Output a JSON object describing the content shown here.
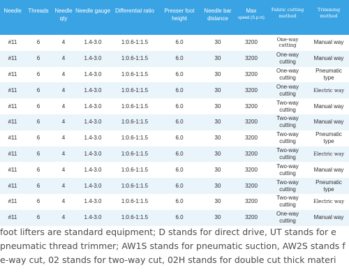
{
  "table": {
    "headers": [
      {
        "text": "Needle",
        "style": "sans"
      },
      {
        "text": "Threads",
        "style": "sans"
      },
      {
        "text": "Needle qty",
        "style": "sans"
      },
      {
        "text": "Needle gauge",
        "style": "sans"
      },
      {
        "text": "Differential ratio",
        "style": "sans"
      },
      {
        "text": "Presser foot height",
        "style": "sans"
      },
      {
        "text": "Needle bar distance",
        "style": "sans"
      },
      {
        "text": "Max",
        "small": "speed (S.p.m)",
        "style": "sans"
      },
      {
        "text": "Fabric cutting method",
        "style": "serif"
      },
      {
        "text": "Trimming method",
        "style": "serif"
      }
    ],
    "rows": [
      {
        "needle": "#11",
        "threads": "6",
        "qty": "4",
        "gauge": "1.4-3.0",
        "ratio": "1:0.6-1:1.5",
        "height": "6.0",
        "bar": "30",
        "speed": "3200",
        "cut": "One-way cutting",
        "cut_serif": true,
        "trim": "Manual way",
        "trim_serif": false
      },
      {
        "needle": "#11",
        "threads": "6",
        "qty": "4",
        "gauge": "1.4-3.0",
        "ratio": "1:0.6-1:1.5",
        "height": "6.0",
        "bar": "30",
        "speed": "3200",
        "cut": "One-way cutting",
        "cut_serif": false,
        "trim": "Manual way",
        "trim_serif": false
      },
      {
        "needle": "#11",
        "threads": "6",
        "qty": "4",
        "gauge": "1.4-3.0",
        "ratio": "1:0.6-1:1.5",
        "height": "6.0",
        "bar": "30",
        "speed": "3200",
        "cut": "One-way cutting",
        "cut_serif": false,
        "trim": "Pneumatic type",
        "trim_serif": false
      },
      {
        "needle": "#11",
        "threads": "6",
        "qty": "4",
        "gauge": "1.4-3.0",
        "ratio": "1:0.6-1:1.5",
        "height": "6.0",
        "bar": "30",
        "speed": "3200",
        "cut": "One-way cutting",
        "cut_serif": false,
        "trim": "Electric way",
        "trim_serif": true
      },
      {
        "needle": "#11",
        "threads": "6",
        "qty": "4",
        "gauge": "1.4-3.0",
        "ratio": "1:0.6-1:1.5",
        "height": "6.0",
        "bar": "30",
        "speed": "3200",
        "cut": "Two-way cutting",
        "cut_serif": false,
        "trim": "Manual way",
        "trim_serif": false
      },
      {
        "needle": "#11",
        "threads": "6",
        "qty": "4",
        "gauge": "1.4-3.0",
        "ratio": "1:0.6-1:1.5",
        "height": "6.0",
        "bar": "30",
        "speed": "3200",
        "cut": "Two-way cutting",
        "cut_serif": false,
        "trim": "Manual way",
        "trim_serif": false
      },
      {
        "needle": "#11",
        "threads": "6",
        "qty": "4",
        "gauge": "1.4-3.0",
        "ratio": "1:0.6-1:1.5",
        "height": "6.0",
        "bar": "30",
        "speed": "3200",
        "cut": "Two-way cutting",
        "cut_serif": false,
        "trim": "Pneumatic type",
        "trim_serif": false
      },
      {
        "needle": "#11",
        "threads": "6",
        "qty": "4",
        "gauge": "1.4-3.0",
        "ratio": "1:0.6-1:1.5",
        "height": "6.0",
        "bar": "30",
        "speed": "3200",
        "cut": "Two-way cutting",
        "cut_serif": false,
        "trim": "Electric way",
        "trim_serif": true
      },
      {
        "needle": "#11",
        "threads": "6",
        "qty": "4",
        "gauge": "1.4-3.0",
        "ratio": "1:0.6-1:1.5",
        "height": "6.0",
        "bar": "30",
        "speed": "3200",
        "cut": "Two-way cutting",
        "cut_serif": false,
        "trim": "Manual way",
        "trim_serif": false
      },
      {
        "needle": "#11",
        "threads": "6",
        "qty": "4",
        "gauge": "1.4-3.0",
        "ratio": "1:0.6-1:1.5",
        "height": "6.0",
        "bar": "30",
        "speed": "3200",
        "cut": "Two-way cutting",
        "cut_serif": false,
        "trim": "Pneumatic type",
        "trim_serif": false
      },
      {
        "needle": "#11",
        "threads": "6",
        "qty": "4",
        "gauge": "1.4-3.0",
        "ratio": "1:0.6-1:1.5",
        "height": "6.0",
        "bar": "30",
        "speed": "3200",
        "cut": "Two-way cutting",
        "cut_serif": false,
        "trim": "Electric way",
        "trim_serif": true
      },
      {
        "needle": "#11",
        "threads": "6",
        "qty": "4",
        "gauge": "1.4-3.0",
        "ratio": "1:0.6-1:1.5",
        "height": "6.0",
        "bar": "30",
        "speed": "3200",
        "cut": "One-way cutting",
        "cut_serif": false,
        "trim": "Manual way",
        "trim_serif": false
      }
    ]
  },
  "footnote": {
    "lines": [
      "foot lifters are standard equipment; D stands for direct drive, UT stands for e",
      "pneumatic thread trimmer; AW1S stands for pneumatic suction, AW2S stands f",
      "e-way cut, 02 stands for two-way cut, 02H stands for double cut thick materi"
    ]
  },
  "colors": {
    "header_bg": "#3aa3e3",
    "stripe": "#e9f4fb"
  }
}
